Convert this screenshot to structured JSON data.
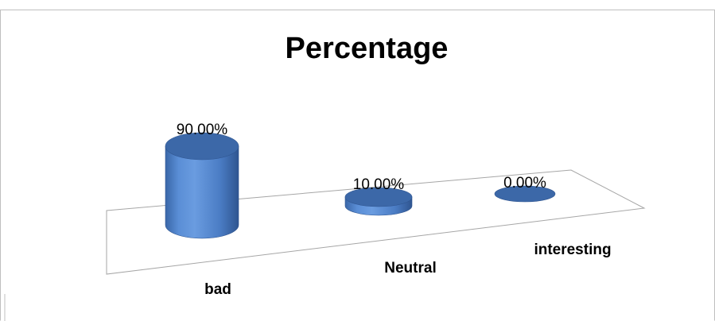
{
  "chart_data": {
    "type": "bar",
    "bar_shape": "3d-cylinder",
    "title": "Percentage",
    "categories": [
      "bad",
      "Neutral",
      "interesting"
    ],
    "values": [
      90.0,
      10.0,
      0.0
    ],
    "data_labels": [
      "90.00%",
      "10.00%",
      "0.00%"
    ],
    "xlabel": "",
    "ylabel": "",
    "ylim": [
      0,
      100
    ],
    "grid": false,
    "legend": "none",
    "colors": {
      "bar_front": "#4a7cc4",
      "bar_top": "#3c68a8",
      "bar_edge": "#2f5590",
      "floor_stroke": "#a6a6a6",
      "border": "#bfbfbf"
    }
  }
}
